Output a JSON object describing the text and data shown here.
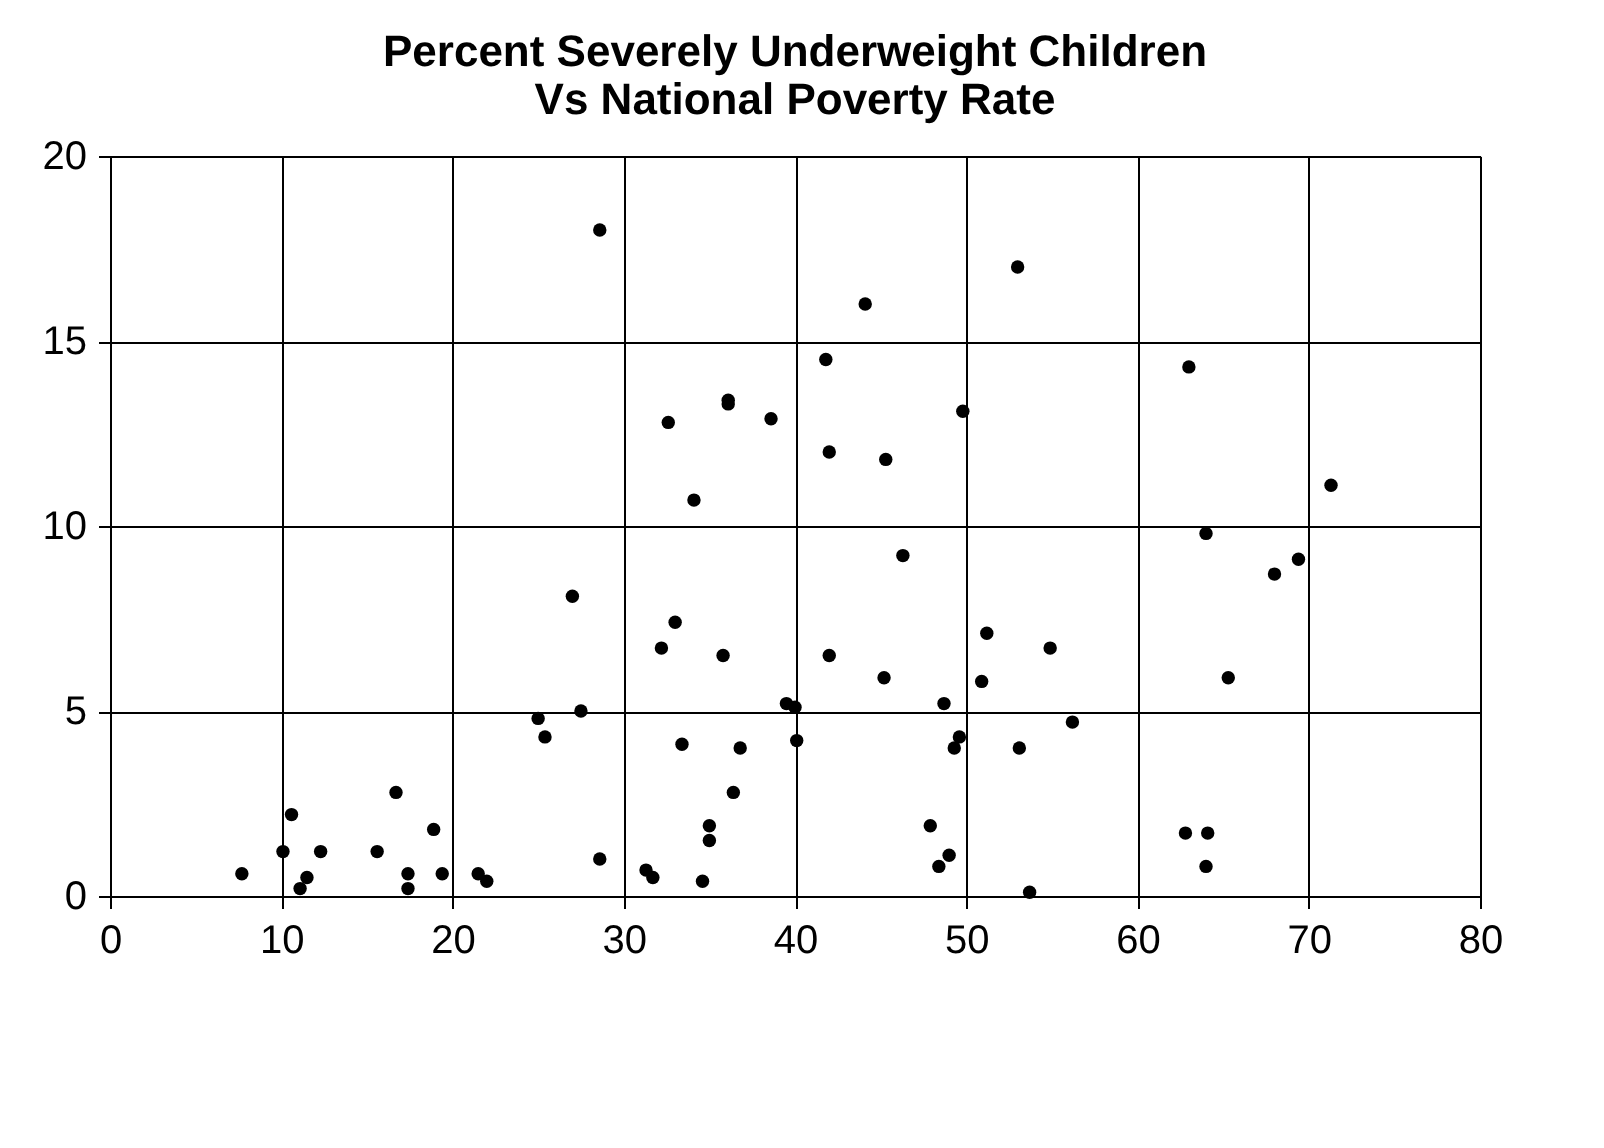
{
  "chart_data": {
    "type": "scatter",
    "title": "Percent Severely Underweight Children\nVs National Poverty Rate",
    "x": [
      7.7,
      10.1,
      10.6,
      11.1,
      11.5,
      12.3,
      15.6,
      16.7,
      17.4,
      17.4,
      18.9,
      19.4,
      21.5,
      22.0,
      25.0,
      25.4,
      27.0,
      27.5,
      28.6,
      28.6,
      31.3,
      31.7,
      32.2,
      32.6,
      33.0,
      33.4,
      34.1,
      34.6,
      35.0,
      35.0,
      35.8,
      36.1,
      36.1,
      36.4,
      36.8,
      38.6,
      39.5,
      40.0,
      40.1,
      41.8,
      42.0,
      42.0,
      44.1,
      45.2,
      45.3,
      46.3,
      47.9,
      48.4,
      48.7,
      49.0,
      49.3,
      49.6,
      49.8,
      50.9,
      51.2,
      53.0,
      53.1,
      53.7,
      54.9,
      56.2,
      62.8,
      63.0,
      64.0,
      64.1,
      64.0,
      65.3,
      68.0,
      69.4,
      71.3
    ],
    "values": [
      0.6,
      1.2,
      2.2,
      0.2,
      0.5,
      1.2,
      1.2,
      2.8,
      0.2,
      0.6,
      1.8,
      0.6,
      0.6,
      0.4,
      4.8,
      4.3,
      8.1,
      5.0,
      18.0,
      1.0,
      0.7,
      0.5,
      6.7,
      12.8,
      7.4,
      4.1,
      10.7,
      0.4,
      1.5,
      1.9,
      6.5,
      13.4,
      13.3,
      2.8,
      4.0,
      12.9,
      5.2,
      5.1,
      4.2,
      14.5,
      12.0,
      6.5,
      16.0,
      5.9,
      11.8,
      9.2,
      1.9,
      0.8,
      5.2,
      1.1,
      4.0,
      4.3,
      13.1,
      5.8,
      7.1,
      17.0,
      4.0,
      0.1,
      6.7,
      4.7,
      1.7,
      14.3,
      9.8,
      1.7,
      0.8,
      5.9,
      8.7,
      9.1,
      11.1
    ],
    "color": "#000000",
    "marker": "circle",
    "xlim": [
      0,
      80
    ],
    "xticks": [
      0,
      10,
      20,
      30,
      40,
      50,
      60,
      70,
      80
    ],
    "ylim": [
      0,
      20
    ],
    "yticks": [
      0,
      5,
      10,
      15,
      20
    ],
    "grid": true
  }
}
